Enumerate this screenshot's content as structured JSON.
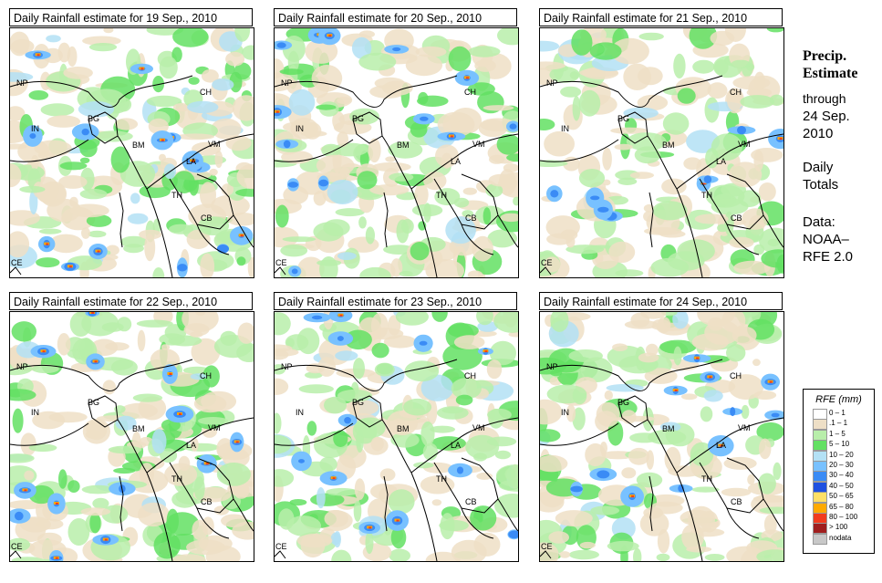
{
  "panels": [
    {
      "title": "Daily Rainfall estimate for  19 Sep., 2010",
      "seed": 11,
      "intensity": 1.0
    },
    {
      "title": "Daily Rainfall estimate for  20 Sep., 2010",
      "seed": 23,
      "intensity": 0.9
    },
    {
      "title": "Daily Rainfall estimate for  21 Sep., 2010",
      "seed": 37,
      "intensity": 0.55
    },
    {
      "title": "Daily Rainfall estimate for  22 Sep., 2010",
      "seed": 41,
      "intensity": 0.95
    },
    {
      "title": "Daily Rainfall estimate for  23 Sep., 2010",
      "seed": 53,
      "intensity": 0.85
    },
    {
      "title": "Daily Rainfall estimate for  24 Sep., 2010",
      "seed": 67,
      "intensity": 0.75
    }
  ],
  "country_labels": [
    "NP",
    "CH",
    "IN",
    "BG",
    "BM",
    "VM",
    "LA",
    "TH",
    "CB",
    "CE"
  ],
  "sidebar": {
    "precip_line1": "Precip.",
    "precip_line2": "Estimate",
    "through": "through",
    "date_line1": "24 Sep.",
    "date_line2": "2010",
    "daily_line1": "Daily",
    "daily_line2": "Totals",
    "data_line1": "Data:",
    "data_line2": "NOAA–",
    "data_line3": "RFE 2.0"
  },
  "legend": {
    "title": "RFE (mm)",
    "items": [
      {
        "label": "0 – 1",
        "color": "#ffffff"
      },
      {
        "label": ".1 – 1",
        "color": "#eedfc6"
      },
      {
        "label": "1 – 5",
        "color": "#b8eeaa"
      },
      {
        "label": "5 – 10",
        "color": "#63e063"
      },
      {
        "label": "10 – 20",
        "color": "#b3e1f5"
      },
      {
        "label": "20 – 30",
        "color": "#78c1ff"
      },
      {
        "label": "30 – 40",
        "color": "#3a8bf5"
      },
      {
        "label": "40 – 50",
        "color": "#1e50e0"
      },
      {
        "label": "50 – 65",
        "color": "#ffe066"
      },
      {
        "label": "65 – 80",
        "color": "#ffaa00"
      },
      {
        "label": "80 – 100",
        "color": "#f23c1e"
      },
      {
        "label": "> 100",
        "color": "#a01e1e"
      },
      {
        "label": "nodata",
        "color": "#c8c8c8"
      }
    ]
  }
}
